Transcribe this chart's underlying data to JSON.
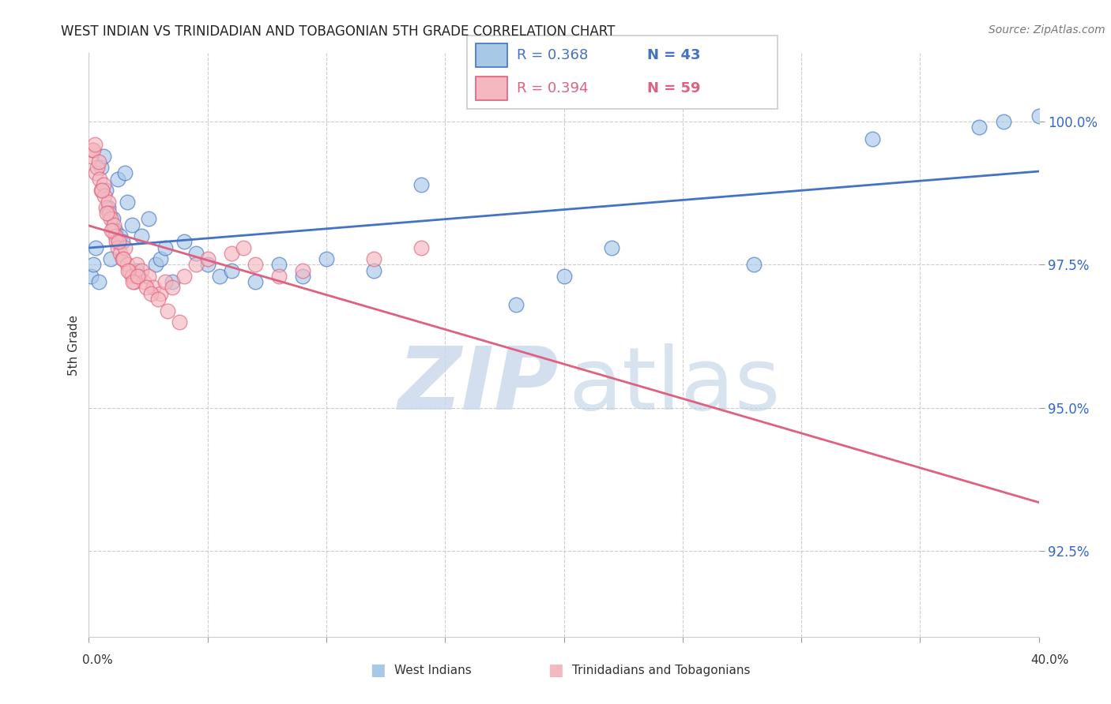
{
  "title": "WEST INDIAN VS TRINIDADIAN AND TOBAGONIAN 5TH GRADE CORRELATION CHART",
  "source": "Source: ZipAtlas.com",
  "ylabel": "5th Grade",
  "x_range": [
    0.0,
    40.0
  ],
  "y_range": [
    91.0,
    101.2
  ],
  "blue_color": "#a8c8e8",
  "pink_color": "#f4b8c0",
  "blue_line_color": "#4472c4",
  "pink_line_color": "#e06080",
  "watermark_zip": "ZIP",
  "watermark_atlas": "atlas",
  "legend_blue_R": "R = 0.368",
  "legend_blue_N": "N = 43",
  "legend_pink_R": "R = 0.394",
  "legend_pink_N": "N = 59",
  "blue_scatter_x": [
    0.1,
    0.2,
    0.3,
    0.4,
    0.5,
    0.6,
    0.7,
    0.8,
    0.9,
    1.0,
    1.1,
    1.2,
    1.3,
    1.4,
    1.5,
    1.6,
    1.8,
    2.0,
    2.2,
    2.5,
    2.8,
    3.0,
    3.2,
    3.5,
    4.0,
    4.5,
    5.0,
    5.5,
    6.0,
    7.0,
    8.0,
    9.0,
    10.0,
    12.0,
    14.0,
    18.0,
    22.0,
    28.0,
    33.0,
    37.5,
    38.5,
    40.0,
    20.0
  ],
  "blue_scatter_y": [
    97.3,
    97.5,
    97.8,
    97.2,
    99.2,
    99.4,
    98.8,
    98.5,
    97.6,
    98.3,
    98.1,
    99.0,
    98.0,
    97.9,
    99.1,
    98.6,
    98.2,
    97.4,
    98.0,
    98.3,
    97.5,
    97.6,
    97.8,
    97.2,
    97.9,
    97.7,
    97.5,
    97.3,
    97.4,
    97.2,
    97.5,
    97.3,
    97.6,
    97.4,
    98.9,
    96.8,
    97.8,
    97.5,
    99.7,
    99.9,
    100.0,
    100.1,
    97.3
  ],
  "pink_scatter_x": [
    0.1,
    0.15,
    0.2,
    0.25,
    0.3,
    0.35,
    0.4,
    0.45,
    0.5,
    0.6,
    0.65,
    0.7,
    0.8,
    0.85,
    0.9,
    1.0,
    1.05,
    1.1,
    1.15,
    1.2,
    1.3,
    1.4,
    1.5,
    1.6,
    1.7,
    1.8,
    1.9,
    2.0,
    2.1,
    2.2,
    2.3,
    2.5,
    2.7,
    3.0,
    3.2,
    3.5,
    4.0,
    4.5,
    5.0,
    6.0,
    7.0,
    8.0,
    9.0,
    12.0,
    14.0,
    0.55,
    0.75,
    0.95,
    1.25,
    1.45,
    1.65,
    1.85,
    2.05,
    2.4,
    2.6,
    2.9,
    3.3,
    3.8,
    6.5
  ],
  "pink_scatter_y": [
    99.4,
    99.5,
    99.5,
    99.6,
    99.1,
    99.2,
    99.3,
    99.0,
    98.8,
    98.9,
    98.7,
    98.5,
    98.6,
    98.4,
    98.3,
    98.1,
    98.2,
    98.0,
    97.9,
    97.8,
    97.7,
    97.6,
    97.8,
    97.5,
    97.4,
    97.3,
    97.2,
    97.5,
    97.3,
    97.4,
    97.2,
    97.3,
    97.1,
    97.0,
    97.2,
    97.1,
    97.3,
    97.5,
    97.6,
    97.7,
    97.5,
    97.3,
    97.4,
    97.6,
    97.8,
    98.8,
    98.4,
    98.1,
    97.9,
    97.6,
    97.4,
    97.2,
    97.3,
    97.1,
    97.0,
    96.9,
    96.7,
    96.5,
    97.8
  ]
}
